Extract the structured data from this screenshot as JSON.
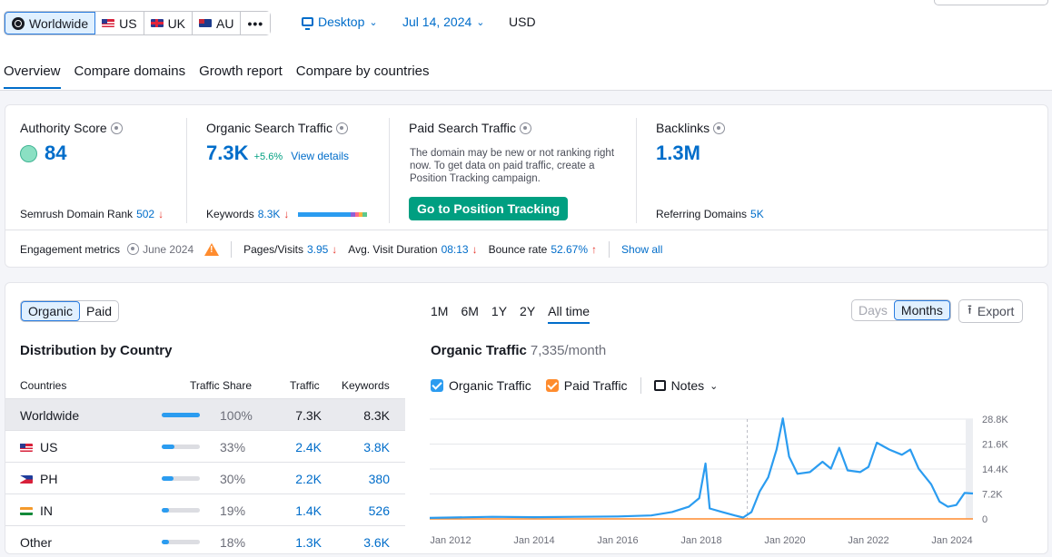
{
  "toolbar": {
    "countries": [
      {
        "label": "Worldwide",
        "flag": "globe-icon",
        "active": true
      },
      {
        "label": "US",
        "flag": "us"
      },
      {
        "label": "UK",
        "flag": "uk"
      },
      {
        "label": "AU",
        "flag": "au"
      }
    ],
    "more_label": "•••",
    "device_label": "Desktop",
    "date_label": "Jul 14, 2024",
    "currency_label": "USD"
  },
  "tabs": [
    "Overview",
    "Compare domains",
    "Growth report",
    "Compare by countries"
  ],
  "metrics": {
    "authority": {
      "label": "Authority Score",
      "value": "84",
      "rank_label": "Semrush Domain Rank",
      "rank_value": "502",
      "rank_arrow": "↓"
    },
    "organic": {
      "label": "Organic Search Traffic",
      "value": "7.3K",
      "change": "+5.6%",
      "details_link": "View details",
      "keywords_label": "Keywords",
      "keywords_value": "8.3K",
      "keywords_arrow": "↓"
    },
    "paid": {
      "label": "Paid Search Traffic",
      "description": "The domain may be new or not ranking right now. To get data on paid traffic, create a Position Tracking campaign.",
      "button_label": "Go to Position Tracking"
    },
    "backlinks": {
      "label": "Backlinks",
      "value": "1.3M",
      "referring_label": "Referring Domains",
      "referring_value": "5K"
    }
  },
  "engagement": {
    "label": "Engagement metrics",
    "period": "June 2024",
    "pages_label": "Pages/Visits",
    "pages_value": "3.95",
    "pages_arrow": "↓",
    "duration_label": "Avg. Visit Duration",
    "duration_value": "08:13",
    "duration_arrow": "↓",
    "bounce_label": "Bounce rate",
    "bounce_value": "52.67%",
    "bounce_arrow": "↑",
    "show_all": "Show all"
  },
  "distribution": {
    "toggle": [
      "Organic",
      "Paid"
    ],
    "title": "Distribution by Country",
    "columns": [
      "Countries",
      "Traffic Share",
      "Traffic",
      "Keywords"
    ],
    "rows": [
      {
        "country": "Worldwide",
        "flag": "",
        "share": "100%",
        "share_frac": 1.0,
        "traffic": "7.3K",
        "keywords": "8.3K",
        "highlight": true
      },
      {
        "country": "US",
        "flag": "us",
        "share": "33%",
        "share_frac": 0.33,
        "traffic": "2.4K",
        "keywords": "3.8K"
      },
      {
        "country": "PH",
        "flag": "ph",
        "share": "30%",
        "share_frac": 0.3,
        "traffic": "2.2K",
        "keywords": "380"
      },
      {
        "country": "IN",
        "flag": "in",
        "share": "19%",
        "share_frac": 0.19,
        "traffic": "1.4K",
        "keywords": "526"
      },
      {
        "country": "Other",
        "flag": "",
        "share": "18%",
        "share_frac": 0.18,
        "traffic": "1.3K",
        "keywords": "3.6K"
      }
    ]
  },
  "traffic_panel": {
    "ranges": [
      "1M",
      "6M",
      "1Y",
      "2Y",
      "All time"
    ],
    "active_range": "All time",
    "granularity": [
      "Days",
      "Months"
    ],
    "export_label": "Export",
    "title": "Organic Traffic",
    "value": "7,335/month",
    "legend": [
      {
        "label": "Organic Traffic",
        "color": "#2b9cf0"
      },
      {
        "label": "Paid Traffic",
        "color": "#ff8c2e"
      }
    ],
    "notes_label": "Notes"
  },
  "chart_data": {
    "type": "line",
    "x_ticks": [
      "Jan 2012",
      "Jan 2014",
      "Jan 2016",
      "Jan 2018",
      "Jan 2020",
      "Jan 2022",
      "Jan 2024"
    ],
    "y_ticks": [
      "28.8K",
      "21.6K",
      "14.4K",
      "7.2K",
      "0"
    ],
    "ylim": [
      0,
      28800
    ],
    "xlim": [
      2011.5,
      2024.5
    ],
    "series": [
      {
        "name": "Organic Traffic",
        "color": "#2b9cf0",
        "points": [
          [
            2011.5,
            300
          ],
          [
            2012.0,
            400
          ],
          [
            2013.0,
            600
          ],
          [
            2014.0,
            500
          ],
          [
            2015.0,
            600
          ],
          [
            2016.0,
            700
          ],
          [
            2016.8,
            1000
          ],
          [
            2017.3,
            2000
          ],
          [
            2017.7,
            3500
          ],
          [
            2017.95,
            6000
          ],
          [
            2018.1,
            16000
          ],
          [
            2018.2,
            3000
          ],
          [
            2018.5,
            2000
          ],
          [
            2018.8,
            1000
          ],
          [
            2019.0,
            400
          ],
          [
            2019.2,
            2000
          ],
          [
            2019.4,
            8000
          ],
          [
            2019.6,
            12000
          ],
          [
            2019.8,
            20000
          ],
          [
            2019.95,
            29000
          ],
          [
            2020.1,
            18000
          ],
          [
            2020.3,
            13000
          ],
          [
            2020.6,
            13500
          ],
          [
            2020.9,
            16500
          ],
          [
            2021.1,
            14500
          ],
          [
            2021.3,
            20500
          ],
          [
            2021.5,
            14000
          ],
          [
            2021.8,
            13500
          ],
          [
            2022.0,
            15000
          ],
          [
            2022.2,
            22000
          ],
          [
            2022.5,
            20000
          ],
          [
            2022.8,
            18500
          ],
          [
            2023.0,
            20000
          ],
          [
            2023.2,
            14500
          ],
          [
            2023.5,
            10000
          ],
          [
            2023.7,
            5000
          ],
          [
            2023.9,
            3500
          ],
          [
            2024.1,
            4000
          ],
          [
            2024.3,
            7500
          ],
          [
            2024.5,
            7335
          ]
        ]
      },
      {
        "name": "Paid Traffic",
        "color": "#ff8c2e",
        "points": [
          [
            2011.5,
            0
          ],
          [
            2024.5,
            0
          ]
        ]
      }
    ],
    "marker_x": 2019.1
  }
}
